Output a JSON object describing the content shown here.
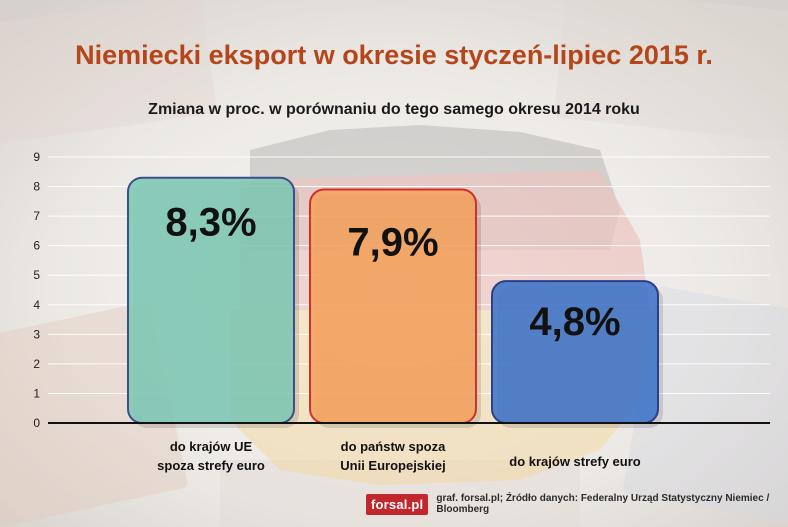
{
  "title": "Niemiecki eksport w okresie styczeń-lipiec 2015 r.",
  "subtitle": "Zmiana w proc. w porównaniu do tego samego okresu 2014 roku",
  "source": {
    "logo": "forsal.pl",
    "text": "graf. forsal.pl; Źródło danych: Federalny Urząd Statystyczny Niemiec / Bloomberg"
  },
  "colors": {
    "bar_eu_non_euro": "#7ec8b4",
    "bar_non_eu": "#f5a35f",
    "bar_euro_area": "#3f74c8",
    "title": "#b5451b"
  },
  "chart_data": {
    "type": "bar",
    "title": "Niemiecki eksport w okresie styczeń-lipiec 2015 r.",
    "subtitle": "Zmiana w proc. w porównaniu do tego samego okresu 2014 roku",
    "categories": [
      [
        "do krajów UE",
        "spoza strefy euro"
      ],
      [
        "do państw spoza",
        "Unii Europejskiej"
      ],
      [
        "do krajów strefy euro"
      ]
    ],
    "values": [
      8.3,
      7.9,
      4.8
    ],
    "data_labels": [
      "8,3%",
      "7,9%",
      "4,8%"
    ],
    "ylim": [
      0,
      9
    ],
    "yticks": [
      "0",
      "1",
      "2",
      "3",
      "4",
      "5",
      "6",
      "7",
      "8",
      "9"
    ],
    "grid": true,
    "legend": "none"
  }
}
